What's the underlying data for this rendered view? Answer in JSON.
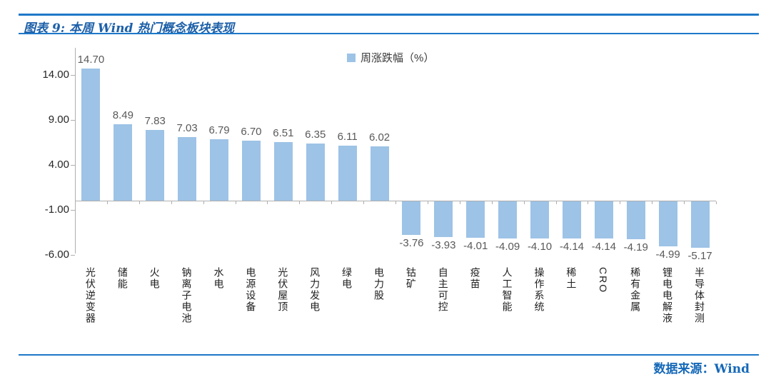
{
  "header": {
    "title": "图表 9: 本周 Wind 热门概念板块表现"
  },
  "footer": {
    "source": "数据来源：Wind"
  },
  "colors": {
    "bar": "#9DC3E6",
    "accent_line": "#1E78C8",
    "title_text": "#1C5FA8",
    "source_text": "#1568B8",
    "axis_line": "#AFAFAF",
    "value_label": "#595959",
    "tick_label": "#262626"
  },
  "chart_data": {
    "type": "bar",
    "title": "本周 Wind 热门概念板块表现",
    "legend_entries": [
      "周涨跌幅（%）"
    ],
    "legend_position": "top-center",
    "grid": false,
    "categories": [
      "光伏逆变器",
      "储能",
      "火电",
      "钠离子电池",
      "水电",
      "电源设备",
      "光伏屋顶",
      "风力发电",
      "绿电",
      "电力股",
      "钴矿",
      "自主可控",
      "疫苗",
      "人工智能",
      "操作系统",
      "稀土",
      "CRO",
      "稀有金属",
      "锂电电解液",
      "半导体封测"
    ],
    "values": [
      14.7,
      8.49,
      7.83,
      7.03,
      6.79,
      6.7,
      6.51,
      6.35,
      6.11,
      6.02,
      -3.76,
      -3.93,
      -4.01,
      -4.09,
      -4.1,
      -4.14,
      -4.14,
      -4.19,
      -4.99,
      -5.17
    ],
    "value_labels": [
      "14.70",
      "8.49",
      "7.83",
      "7.03",
      "6.79",
      "6.70",
      "6.51",
      "6.35",
      "6.11",
      "6.02",
      "-3.76",
      "-3.93",
      "-4.01",
      "-4.09",
      "-4.10",
      "-4.14",
      "-4.14",
      "-4.19",
      "-4.99",
      "-5.17"
    ],
    "yticks": [
      {
        "label": "14.00",
        "value": 14
      },
      {
        "label": "9.00",
        "value": 9
      },
      {
        "label": "4.00",
        "value": 4
      },
      {
        "label": "-1.00",
        "value": -1
      },
      {
        "label": "-6.00",
        "value": -6
      }
    ],
    "ylim": [
      -6.5,
      17
    ],
    "ylabel": "",
    "xlabel": ""
  }
}
